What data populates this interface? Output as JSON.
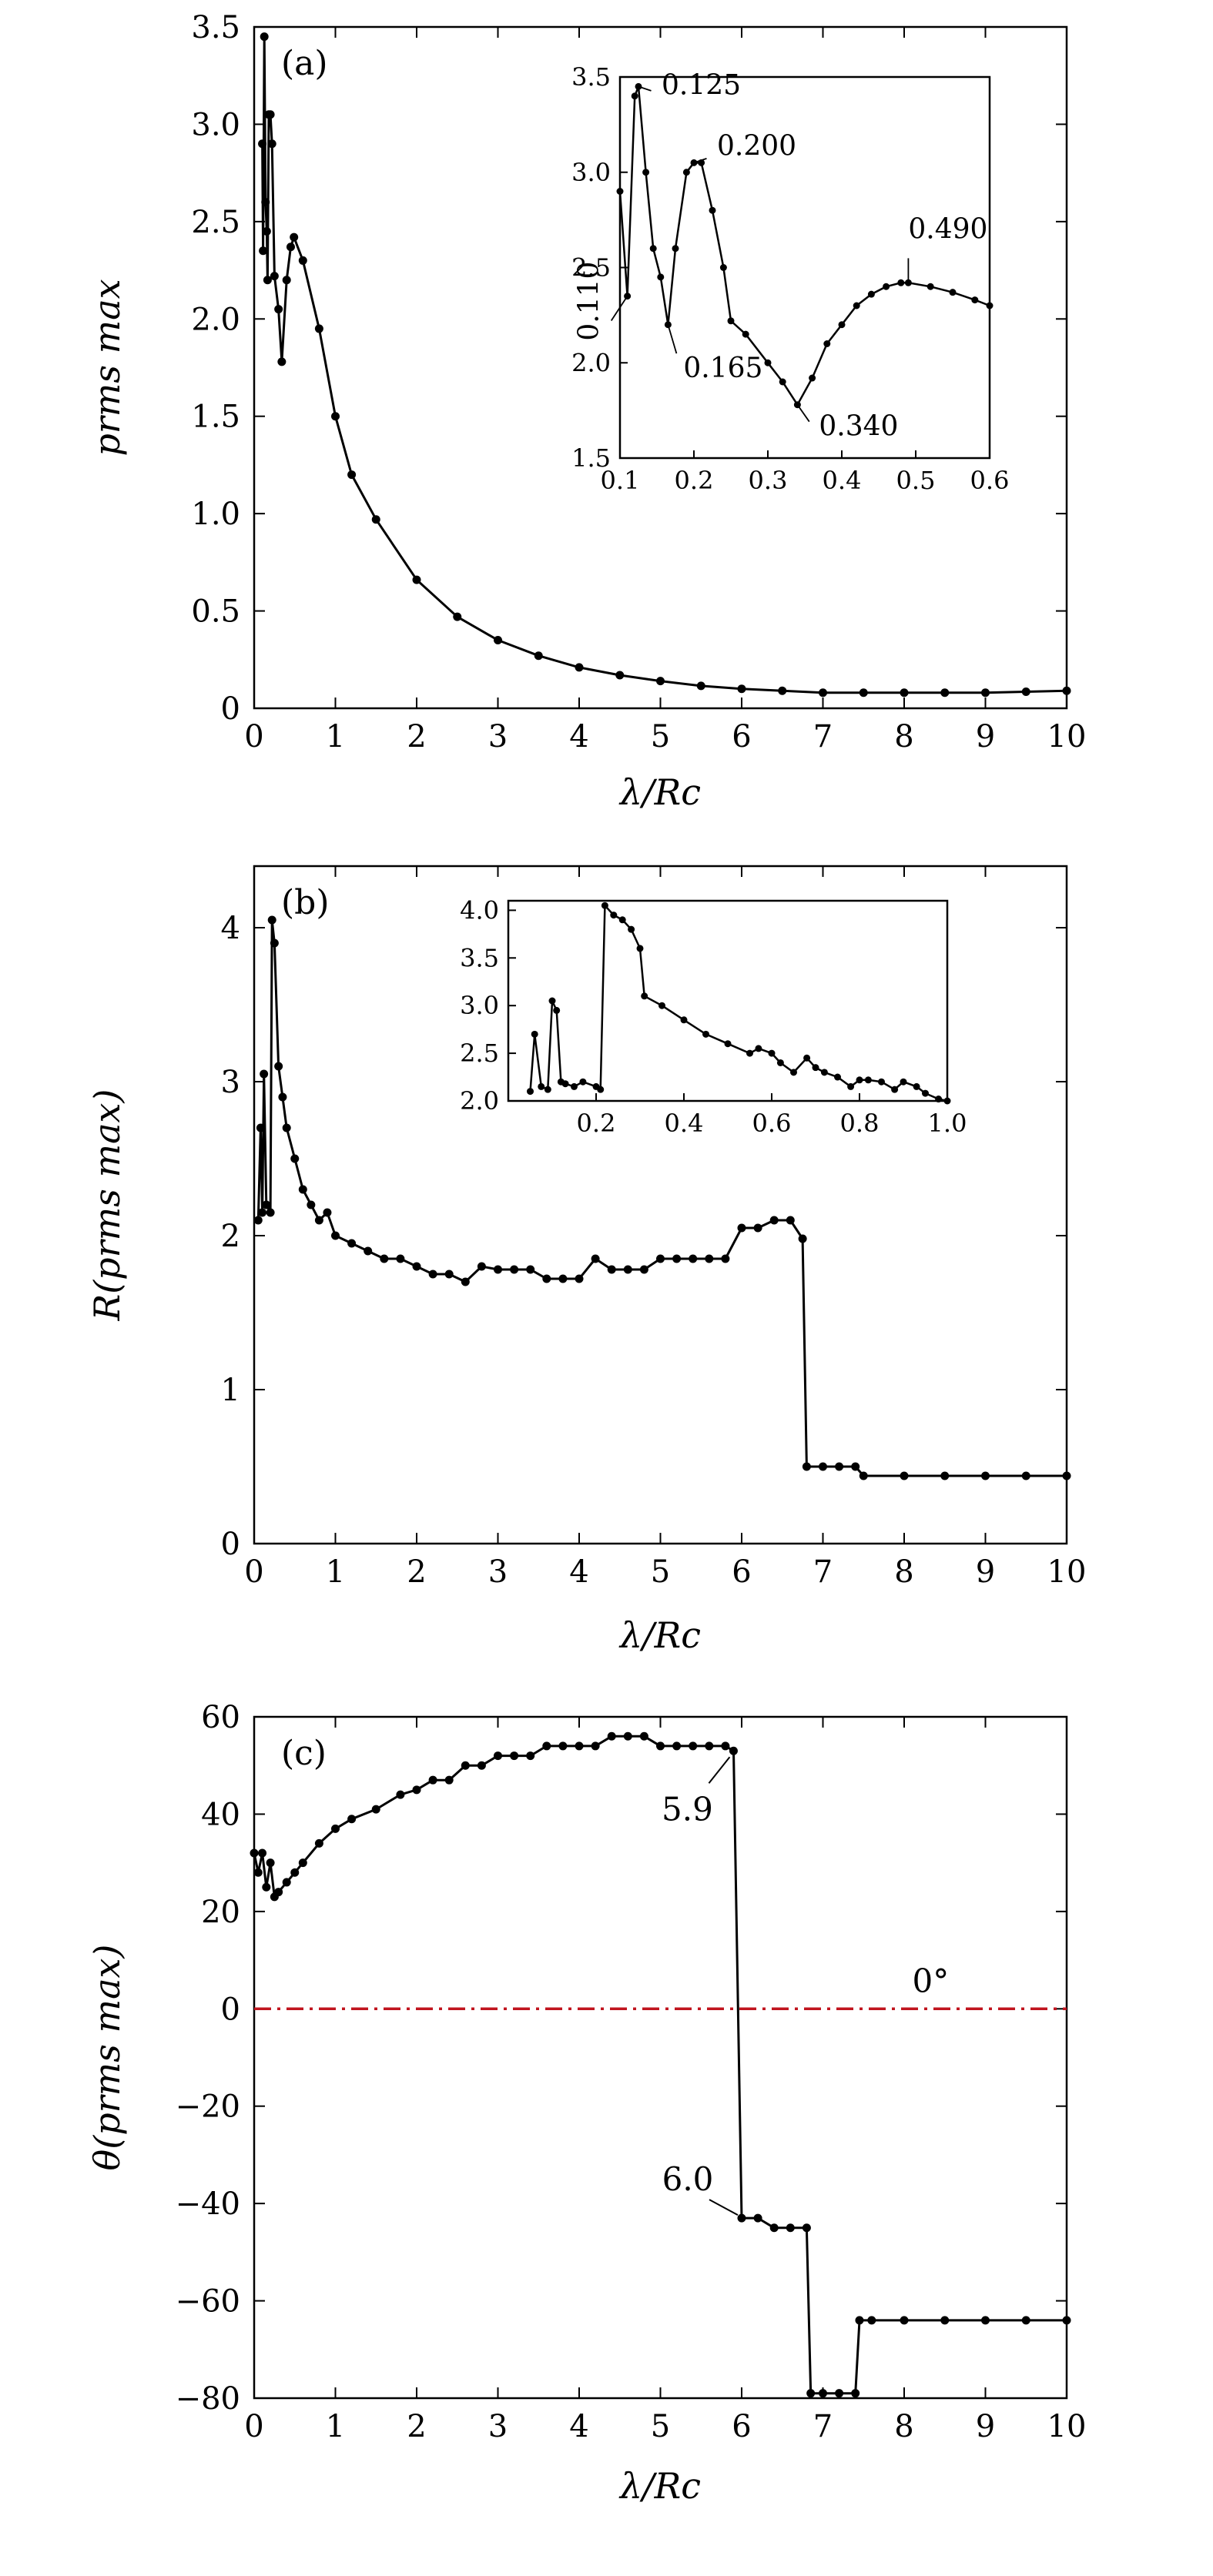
{
  "chart_data": [
    {
      "type": "line",
      "panel_label": "(a)",
      "xlabel": "λ/Rc",
      "ylabel": "prms max",
      "xlim": [
        0,
        10
      ],
      "ylim": [
        0,
        3.5
      ],
      "xticks": [
        "0",
        "1",
        "2",
        "3",
        "4",
        "5",
        "6",
        "7",
        "8",
        "9",
        "10"
      ],
      "yticks": [
        "0",
        "0.5",
        "1.0",
        "1.5",
        "2.0",
        "2.5",
        "3.0",
        "3.5"
      ],
      "marker": "dot",
      "color": "#000000",
      "series": [
        {
          "x": [
            0.1,
            0.11,
            0.125,
            0.14,
            0.155,
            0.165,
            0.18,
            0.2,
            0.22,
            0.25,
            0.3,
            0.34,
            0.4,
            0.45,
            0.49,
            0.6,
            0.8,
            1.0,
            1.2,
            1.5,
            2.0,
            2.5,
            3.0,
            3.5,
            4.0,
            4.5,
            5.0,
            5.5,
            6.0,
            6.5,
            7.0,
            7.5,
            8.0,
            8.5,
            9.0,
            9.5,
            10.0
          ],
          "y": [
            2.9,
            2.35,
            3.45,
            2.6,
            2.45,
            2.2,
            3.05,
            3.05,
            2.9,
            2.22,
            2.05,
            1.78,
            2.2,
            2.37,
            2.42,
            2.3,
            1.95,
            1.5,
            1.2,
            0.97,
            0.66,
            0.47,
            0.35,
            0.27,
            0.21,
            0.17,
            0.14,
            0.115,
            0.1,
            0.09,
            0.08,
            0.08,
            0.08,
            0.08,
            0.08,
            0.085,
            0.09
          ]
        }
      ],
      "inset": {
        "xlim": [
          0.1,
          0.6
        ],
        "ylim": [
          1.5,
          3.5
        ],
        "xticks": [
          "0.1",
          "0.2",
          "0.3",
          "0.4",
          "0.5",
          "0.6"
        ],
        "yticks": [
          "1.5",
          "2.0",
          "2.5",
          "3.0",
          "3.5"
        ],
        "x": [
          0.1,
          0.11,
          0.12,
          0.125,
          0.135,
          0.145,
          0.155,
          0.165,
          0.175,
          0.19,
          0.2,
          0.21,
          0.225,
          0.24,
          0.25,
          0.27,
          0.3,
          0.32,
          0.34,
          0.36,
          0.38,
          0.4,
          0.42,
          0.44,
          0.46,
          0.48,
          0.49,
          0.52,
          0.55,
          0.58,
          0.6
        ],
        "y": [
          2.9,
          2.35,
          3.4,
          3.45,
          3.0,
          2.6,
          2.45,
          2.2,
          2.6,
          3.0,
          3.05,
          3.05,
          2.8,
          2.5,
          2.22,
          2.15,
          2.0,
          1.9,
          1.78,
          1.92,
          2.1,
          2.2,
          2.3,
          2.36,
          2.4,
          2.42,
          2.42,
          2.4,
          2.37,
          2.33,
          2.3
        ],
        "annotations": [
          {
            "text": "0.125",
            "x": 0.125,
            "y": 3.45
          },
          {
            "text": "0.200",
            "x": 0.2,
            "y": 3.05
          },
          {
            "text": "0.490",
            "x": 0.49,
            "y": 2.42
          },
          {
            "text": "0.110",
            "x": 0.11,
            "y": 2.35
          },
          {
            "text": "0.165",
            "x": 0.165,
            "y": 2.2
          },
          {
            "text": "0.340",
            "x": 0.34,
            "y": 1.78
          }
        ]
      }
    },
    {
      "type": "line",
      "panel_label": "(b)",
      "xlabel": "λ/Rc",
      "ylabel": "R(prms max)",
      "xlim": [
        0,
        10
      ],
      "ylim": [
        0,
        4.4
      ],
      "xticks": [
        "0",
        "1",
        "2",
        "3",
        "4",
        "5",
        "6",
        "7",
        "8",
        "9",
        "10"
      ],
      "yticks": [
        "0",
        "1",
        "2",
        "3",
        "4"
      ],
      "marker": "dot",
      "color": "#000000",
      "series": [
        {
          "x": [
            0.05,
            0.08,
            0.1,
            0.12,
            0.15,
            0.2,
            0.22,
            0.25,
            0.3,
            0.35,
            0.4,
            0.5,
            0.6,
            0.7,
            0.8,
            0.9,
            1.0,
            1.2,
            1.4,
            1.6,
            1.8,
            2.0,
            2.2,
            2.4,
            2.6,
            2.8,
            3.0,
            3.2,
            3.4,
            3.6,
            3.8,
            4.0,
            4.2,
            4.4,
            4.6,
            4.8,
            5.0,
            5.2,
            5.4,
            5.6,
            5.8,
            6.0,
            6.2,
            6.4,
            6.6,
            6.75,
            6.8,
            7.0,
            7.2,
            7.4,
            7.5,
            8.0,
            8.5,
            9.0,
            9.5,
            10.0
          ],
          "y": [
            2.1,
            2.7,
            2.15,
            3.05,
            2.2,
            2.15,
            4.05,
            3.9,
            3.1,
            2.9,
            2.7,
            2.5,
            2.3,
            2.2,
            2.1,
            2.15,
            2.0,
            1.95,
            1.9,
            1.85,
            1.85,
            1.8,
            1.75,
            1.75,
            1.7,
            1.8,
            1.78,
            1.78,
            1.78,
            1.72,
            1.72,
            1.72,
            1.85,
            1.78,
            1.78,
            1.78,
            1.85,
            1.85,
            1.85,
            1.85,
            1.85,
            2.05,
            2.05,
            2.1,
            2.1,
            1.98,
            0.5,
            0.5,
            0.5,
            0.5,
            0.44,
            0.44,
            0.44,
            0.44,
            0.44,
            0.44
          ]
        }
      ],
      "inset": {
        "xlim": [
          0.0,
          1.0
        ],
        "ylim": [
          2.0,
          4.1
        ],
        "xticks": [
          "0.2",
          "0.4",
          "0.6",
          "0.8",
          "1.0"
        ],
        "yticks": [
          "2.0",
          "2.5",
          "3.0",
          "3.5",
          "4.0"
        ],
        "x": [
          0.05,
          0.06,
          0.075,
          0.09,
          0.1,
          0.11,
          0.12,
          0.13,
          0.15,
          0.17,
          0.2,
          0.21,
          0.22,
          0.24,
          0.26,
          0.28,
          0.3,
          0.31,
          0.35,
          0.4,
          0.45,
          0.5,
          0.55,
          0.57,
          0.6,
          0.62,
          0.65,
          0.68,
          0.7,
          0.72,
          0.75,
          0.78,
          0.8,
          0.82,
          0.85,
          0.88,
          0.9,
          0.93,
          0.95,
          0.98,
          1.0
        ],
        "y": [
          2.1,
          2.7,
          2.15,
          2.12,
          3.05,
          2.95,
          2.2,
          2.18,
          2.15,
          2.2,
          2.15,
          2.12,
          4.05,
          3.95,
          3.9,
          3.8,
          3.6,
          3.1,
          3.0,
          2.85,
          2.7,
          2.6,
          2.5,
          2.55,
          2.5,
          2.4,
          2.3,
          2.45,
          2.35,
          2.3,
          2.25,
          2.15,
          2.22,
          2.22,
          2.2,
          2.12,
          2.2,
          2.15,
          2.08,
          2.02,
          2.0
        ]
      }
    },
    {
      "type": "line",
      "panel_label": "(c)",
      "xlabel": "λ/Rc",
      "ylabel": "θ(prms max)",
      "xlim": [
        0,
        10
      ],
      "ylim": [
        -80,
        60
      ],
      "xticks": [
        "0",
        "1",
        "2",
        "3",
        "4",
        "5",
        "6",
        "7",
        "8",
        "9",
        "10"
      ],
      "yticks": [
        "−80",
        "−60",
        "−40",
        "−20",
        "0",
        "20",
        "40",
        "60"
      ],
      "marker": "dot",
      "color": "#000000",
      "series": [
        {
          "x": [
            0.0,
            0.05,
            0.1,
            0.15,
            0.2,
            0.25,
            0.3,
            0.4,
            0.5,
            0.6,
            0.8,
            1.0,
            1.2,
            1.5,
            1.8,
            2.0,
            2.2,
            2.4,
            2.6,
            2.8,
            3.0,
            3.2,
            3.4,
            3.6,
            3.8,
            4.0,
            4.2,
            4.4,
            4.6,
            4.8,
            5.0,
            5.2,
            5.4,
            5.6,
            5.8,
            5.9,
            6.0,
            6.2,
            6.4,
            6.6,
            6.8,
            6.85,
            7.0,
            7.2,
            7.4,
            7.45,
            7.6,
            8.0,
            8.5,
            9.0,
            9.5,
            10.0
          ],
          "y": [
            32,
            28,
            32,
            25,
            30,
            23,
            24,
            26,
            28,
            30,
            34,
            37,
            39,
            41,
            44,
            45,
            47,
            47,
            50,
            50,
            52,
            52,
            52,
            54,
            54,
            54,
            54,
            56,
            56,
            56,
            54,
            54,
            54,
            54,
            54,
            53,
            -43,
            -43,
            -45,
            -45,
            -45,
            -79,
            -79,
            -79,
            -79,
            -64,
            -64,
            -64,
            -64,
            -64,
            -64,
            -64
          ]
        }
      ],
      "reference_line": {
        "y": 0,
        "label": "0°",
        "color": "#c0141e",
        "style": "dash-dot"
      },
      "annotations": [
        {
          "text": "5.9",
          "x": 5.9,
          "y": 53
        },
        {
          "text": "6.0",
          "x": 6.0,
          "y": -43
        }
      ]
    }
  ]
}
